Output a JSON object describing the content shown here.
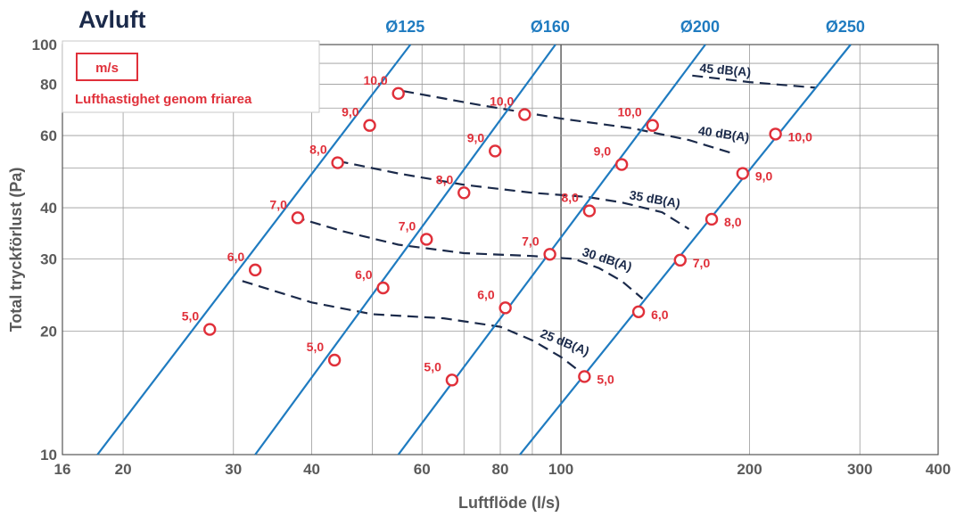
{
  "chart_data": {
    "type": "line",
    "title": "Avluft",
    "xlabel": "Luftflöde (l/s)",
    "ylabel": "Total tryckförlust (Pa)",
    "xscale": "log",
    "yscale": "log",
    "xlim": [
      16,
      400
    ],
    "ylim": [
      10,
      100
    ],
    "x_ticks": [
      16,
      20,
      30,
      40,
      60,
      80,
      100,
      200,
      300,
      400
    ],
    "x_tick_labels": [
      "16",
      "20",
      "30",
      "40",
      "60",
      "80",
      "100",
      "200",
      "300",
      "400"
    ],
    "y_ticks": [
      10,
      20,
      30,
      40,
      60,
      80,
      100
    ],
    "y_tick_labels": [
      "10",
      "20",
      "30",
      "40",
      "60",
      "80",
      "100"
    ],
    "grid": true,
    "legend": {
      "title": "m/s",
      "subtitle": "Lufthastighet genom friarea",
      "placement": "top-left"
    },
    "series": [
      {
        "name": "Ø125",
        "line": [
          [
            18.2,
            10
          ],
          [
            57.5,
            100
          ]
        ],
        "points": [
          {
            "x": 27.5,
            "y": 20.2,
            "label": "5,0"
          },
          {
            "x": 32.5,
            "y": 28.2,
            "label": "6,0"
          },
          {
            "x": 38.0,
            "y": 37.8,
            "label": "7,0"
          },
          {
            "x": 44.0,
            "y": 51.5,
            "label": "8,0"
          },
          {
            "x": 49.5,
            "y": 63.5,
            "label": "9,0"
          },
          {
            "x": 55.0,
            "y": 76.0,
            "label": "10,0"
          }
        ]
      },
      {
        "name": "Ø160",
        "line": [
          [
            32.5,
            10
          ],
          [
            98.0,
            100
          ]
        ],
        "points": [
          {
            "x": 43.5,
            "y": 17.0,
            "label": "5,0"
          },
          {
            "x": 52.0,
            "y": 25.5,
            "label": "6,0"
          },
          {
            "x": 61.0,
            "y": 33.5,
            "label": "7,0"
          },
          {
            "x": 70.0,
            "y": 43.5,
            "label": "8,0"
          },
          {
            "x": 78.5,
            "y": 55.0,
            "label": "9,0"
          },
          {
            "x": 87.5,
            "y": 67.5,
            "label": "10,0"
          }
        ]
      },
      {
        "name": "Ø200",
        "line": [
          [
            55.0,
            10
          ],
          [
            170.0,
            100
          ]
        ],
        "points": [
          {
            "x": 67.0,
            "y": 15.2,
            "label": "5,0"
          },
          {
            "x": 81.5,
            "y": 22.8,
            "label": "6,0"
          },
          {
            "x": 96.0,
            "y": 30.8,
            "label": "7,0"
          },
          {
            "x": 111.0,
            "y": 39.3,
            "label": "8,0"
          },
          {
            "x": 125.0,
            "y": 51.0,
            "label": "9,0"
          },
          {
            "x": 140.0,
            "y": 63.5,
            "label": "10,0"
          }
        ]
      },
      {
        "name": "Ø250",
        "line": [
          [
            86.0,
            10
          ],
          [
            290.0,
            100
          ]
        ],
        "points": [
          {
            "x": 109.0,
            "y": 15.5,
            "label": "5,0"
          },
          {
            "x": 133.0,
            "y": 22.3,
            "label": "6,0"
          },
          {
            "x": 155.0,
            "y": 29.8,
            "label": "7,0"
          },
          {
            "x": 174.0,
            "y": 37.5,
            "label": "8,0"
          },
          {
            "x": 195.0,
            "y": 48.5,
            "label": "9,0"
          },
          {
            "x": 220.0,
            "y": 60.5,
            "label": "10,0"
          }
        ]
      }
    ],
    "noise_curves": [
      {
        "name": "45 dB(A)",
        "points": [
          [
            162,
            84
          ],
          [
            200,
            81
          ],
          [
            255,
            78.5
          ]
        ]
      },
      {
        "name": "40 dB(A)",
        "points": [
          [
            56,
            77
          ],
          [
            75,
            71
          ],
          [
            100,
            66
          ],
          [
            130,
            62.5
          ],
          [
            160,
            58.5
          ],
          [
            190,
            54
          ]
        ]
      },
      {
        "name": "35 dB(A)",
        "points": [
          [
            44,
            52
          ],
          [
            55,
            48.5
          ],
          [
            70,
            45.5
          ],
          [
            90,
            43.5
          ],
          [
            110,
            42.5
          ],
          [
            125,
            41.2
          ],
          [
            145,
            39
          ],
          [
            160,
            35.5
          ]
        ]
      },
      {
        "name": "30 dB(A)",
        "points": [
          [
            37.5,
            38
          ],
          [
            45,
            35
          ],
          [
            55,
            32.5
          ],
          [
            70,
            31
          ],
          [
            90,
            30.5
          ],
          [
            105,
            30
          ],
          [
            115,
            28.5
          ],
          [
            125,
            26.5
          ],
          [
            135,
            24
          ]
        ]
      },
      {
        "name": "25 dB(A)",
        "points": [
          [
            31,
            26.5
          ],
          [
            40,
            23.5
          ],
          [
            50,
            22
          ],
          [
            65,
            21.5
          ],
          [
            80,
            20.5
          ],
          [
            90,
            19
          ],
          [
            100,
            17.3
          ],
          [
            108,
            15.8
          ]
        ]
      }
    ]
  }
}
